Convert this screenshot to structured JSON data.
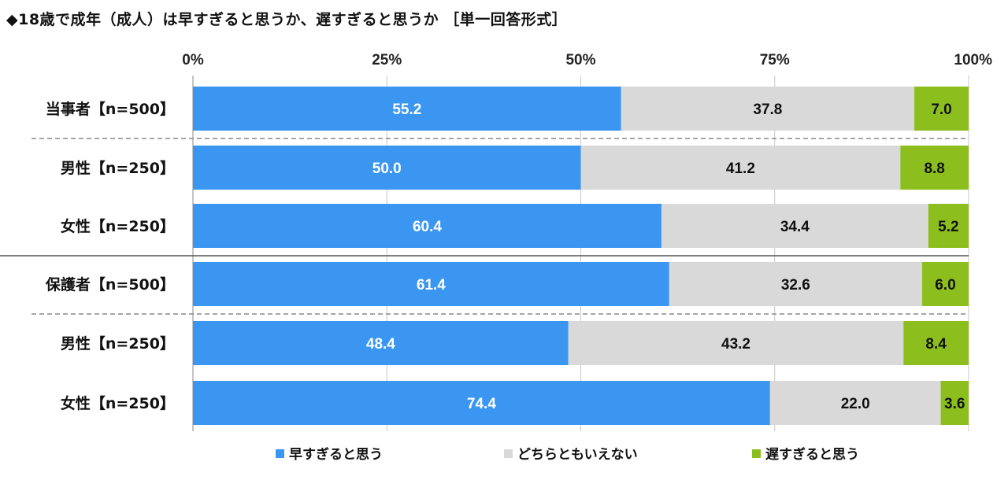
{
  "title": "◆18歳で成年（成人）は早すぎると思うか、遅すぎると思うか ［単一回答形式］",
  "chart_data": {
    "type": "bar",
    "orientation": "horizontal",
    "stacked": true,
    "x_tick_labels": [
      "0%",
      "25%",
      "50%",
      "75%",
      "100%"
    ],
    "xlim": [
      0,
      100
    ],
    "categories": [
      "当事者【n=500】",
      "男性【n=250】",
      "女性【n=250】",
      "保護者【n=500】",
      "男性【n=250】",
      "女性【n=250】"
    ],
    "series": [
      {
        "name": "早すぎると思う",
        "color": "#3a96f0",
        "values": [
          55.2,
          50.0,
          60.4,
          61.4,
          48.4,
          74.4
        ],
        "labels": [
          "55.2",
          "50.0",
          "60.4",
          "61.4",
          "48.4",
          "74.4"
        ]
      },
      {
        "name": "どちらともいえない",
        "color": "#d9d9d9",
        "values": [
          37.8,
          41.2,
          34.4,
          32.6,
          43.2,
          22.0
        ],
        "labels": [
          "37.8",
          "41.2",
          "34.4",
          "32.6",
          "43.2",
          "22.0"
        ]
      },
      {
        "name": "遅すぎると思う",
        "color": "#8cbf1e",
        "values": [
          7.0,
          8.8,
          5.2,
          6.0,
          8.4,
          3.6
        ],
        "labels": [
          "7.0",
          "8.8",
          "5.2",
          "6.0",
          "8.4",
          "3.6"
        ]
      }
    ],
    "legend_position": "bottom",
    "grid": true
  }
}
